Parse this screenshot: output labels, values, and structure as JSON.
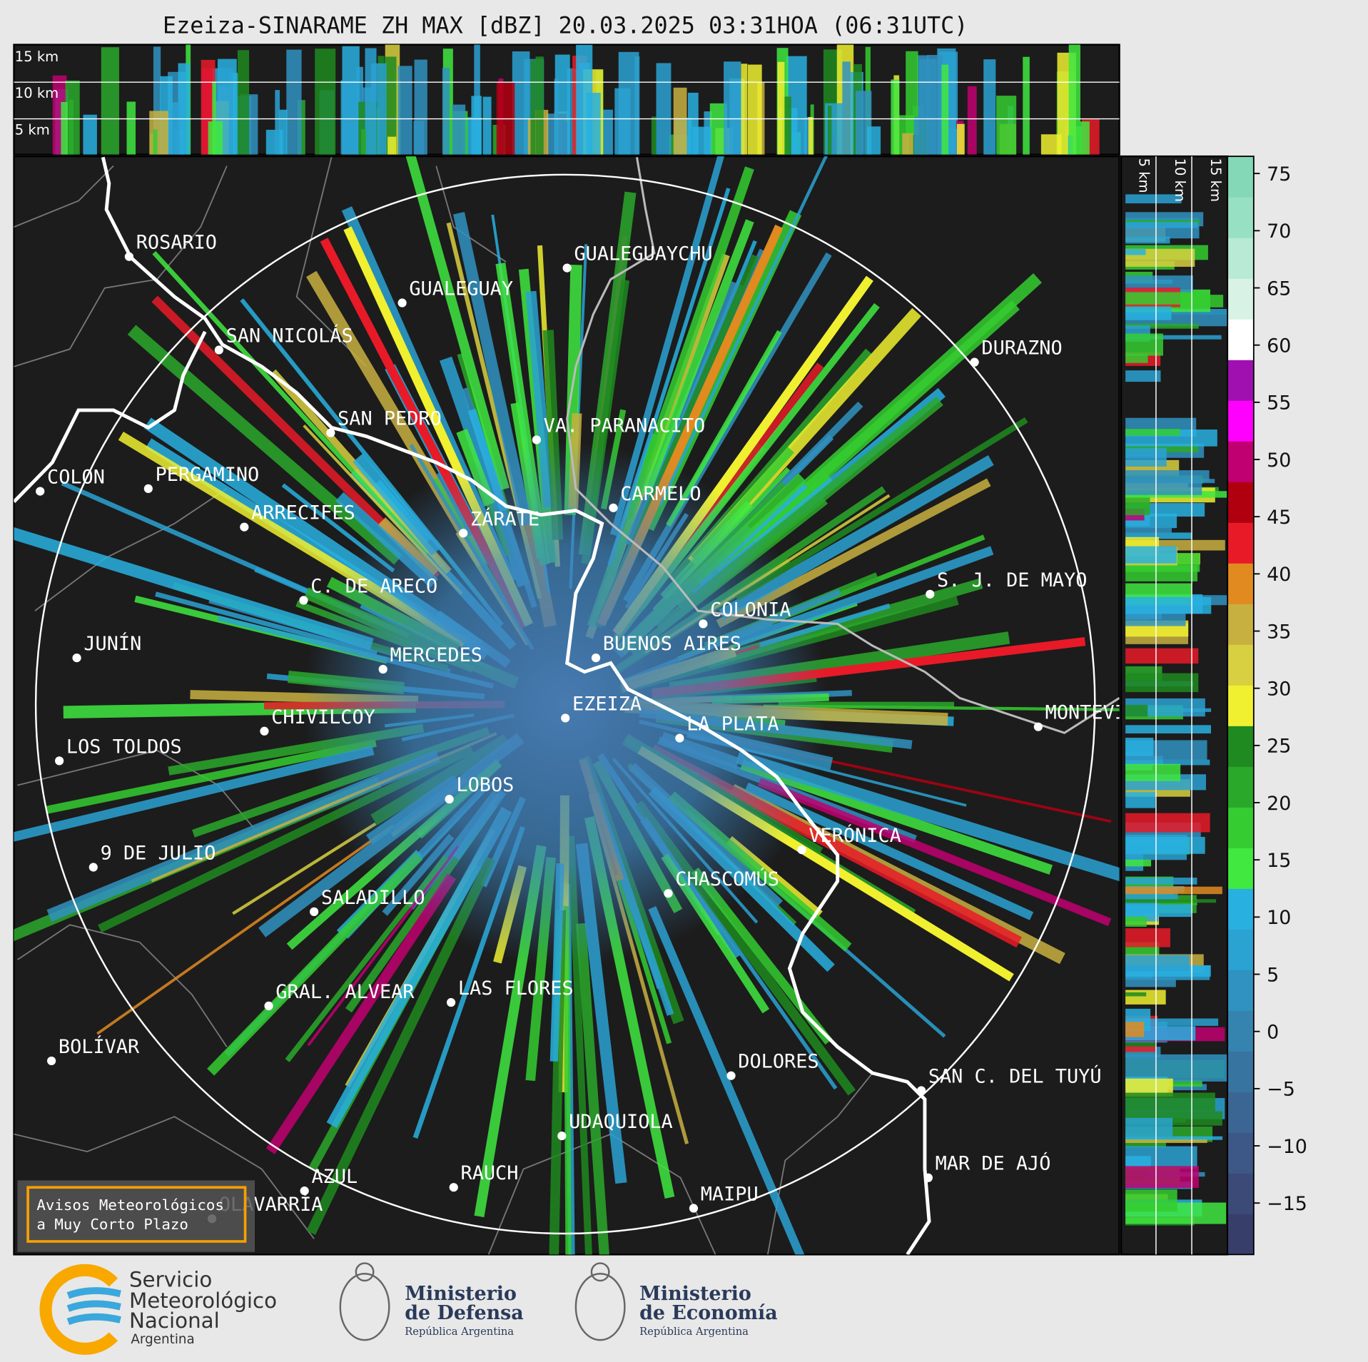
{
  "title": "Ezeiza-SINARAME ZH MAX [dBZ] 20.03.2025 03:31HOA (06:31UTC)",
  "top_panel": {
    "height_labels": [
      "15 km",
      "10 km",
      "5 km"
    ]
  },
  "side_panel": {
    "height_labels": [
      "5 km",
      "10 km",
      "15 km"
    ]
  },
  "cities": [
    "ROSARIO",
    "GUALEGUAYCHU",
    "GUALEGUAY",
    "SAN NICOLÁS",
    "DURAZNO",
    "SAN PEDRO",
    "VA. PARANACITO",
    "COLON",
    "PERGAMINO",
    "CARMELO",
    "ARRECIFES",
    "ZÁRATE",
    "S. J. DE MAYO",
    "C. DE ARECO",
    "COLONIA",
    "BUENOS AIRES",
    "JUNÍN",
    "MERCEDES",
    "EZEIZA",
    "MONTEVIDEO",
    "LA PLATA",
    "CHIVILCOY",
    "LOS TOLDOS",
    "LOBOS",
    "VERÓNICA",
    "9 DE JULIO",
    "CHASCOMÚS",
    "SALADILLO",
    "GRAL. ALVEAR",
    "LAS FLORES",
    "BOLÍVAR",
    "DOLORES",
    "SAN C. DEL TUYÚ",
    "UDAQUIOLA",
    "MAR DE AJÓ",
    "AZUL",
    "RAUCH",
    "OLAVARRÍA",
    "MAIPU"
  ],
  "colorbar": {
    "lim": [
      -19.5,
      76.5
    ],
    "ticks": [
      {
        "value": -15,
        "label": "−15"
      },
      {
        "value": -10,
        "label": "−10"
      },
      {
        "value": -5,
        "label": "−5"
      },
      0,
      5,
      10,
      15,
      20,
      25,
      30,
      35,
      40,
      45,
      50,
      55,
      60,
      65,
      70,
      75
    ],
    "colors": [
      "#383e6a",
      "#3c4a78",
      "#3d5886",
      "#3b6693",
      "#3874a0",
      "#3584b0",
      "#3092c0",
      "#2aa2d2",
      "#28b0e0",
      "#40e840",
      "#34cc30",
      "#2aa82a",
      "#1f8a1f",
      "#f0f030",
      "#d8d040",
      "#c8b040",
      "#e08a20",
      "#e81a28",
      "#b00010",
      "#c00070",
      "#ff00ff",
      "#a010b0",
      "#ffffff",
      "#d8f2e6",
      "#b8ead6",
      "#98e0c4",
      "#84d8b8"
    ]
  },
  "warning_box": [
    "Avisos Meteorológicos",
    "a Muy Corto Plazo"
  ],
  "logos": {
    "smn": [
      "Servicio",
      "Meteorológico",
      "Nacional",
      "Argentina"
    ],
    "defensa": [
      "Ministerio",
      "de Defensa",
      "República Argentina"
    ],
    "economia": [
      "Ministerio",
      "de Economía",
      "República Argentina"
    ]
  }
}
